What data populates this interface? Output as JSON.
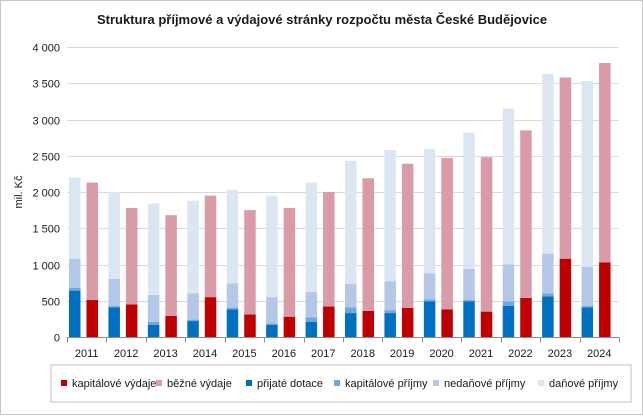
{
  "chart_data": {
    "type": "bar",
    "title": "Struktura  příjmové a výdajové stránky  rozpočtu města České Budějovice",
    "ylabel": "mil. Kč",
    "ylim": [
      0,
      4000
    ],
    "yticks": [
      0,
      500,
      1000,
      1500,
      2000,
      2500,
      3000,
      3500,
      4000
    ],
    "ytick_labels": [
      "0",
      "500",
      "1 000",
      "1 500",
      "2 000",
      "2 500",
      "3 000",
      "3 500",
      "4 000"
    ],
    "grid": true,
    "legend_position": "bottom",
    "categories": [
      "2011",
      "2012",
      "2013",
      "2014",
      "2015",
      "2016",
      "2017",
      "2018",
      "2019",
      "2020",
      "2021",
      "2022",
      "2023",
      "2024"
    ],
    "stacks": [
      {
        "stack": "příjmy",
        "series": [
          {
            "name": "přijaté dotace",
            "color": "#0070c0",
            "values": [
              640,
              410,
              170,
              220,
              380,
              170,
              210,
              330,
              330,
              490,
              490,
              430,
              560,
              410
            ]
          },
          {
            "name": "kapitálové příjmy",
            "color": "#6fa8dc",
            "values": [
              40,
              20,
              40,
              20,
              20,
              20,
              60,
              80,
              40,
              30,
              20,
              60,
              40,
              20
            ]
          },
          {
            "name": "nedaňové příjmy",
            "color": "#b4c7e7",
            "values": [
              400,
              370,
              370,
              360,
              340,
              360,
              350,
              320,
              400,
              360,
              430,
              510,
              550,
              540
            ]
          },
          {
            "name": "daňové příjmy",
            "color": "#dce6f2",
            "values": [
              1120,
              1200,
              1260,
              1280,
              1290,
              1400,
              1510,
              1700,
              1810,
              1710,
              1880,
              2150,
              2480,
              2560
            ]
          }
        ]
      },
      {
        "stack": "výdaje",
        "series": [
          {
            "name": "kapitálové výdaje",
            "color": "#c00000",
            "values": [
              510,
              450,
              290,
              550,
              310,
              280,
              420,
              360,
              400,
              380,
              350,
              540,
              1080,
              1030
            ]
          },
          {
            "name": "běžné výdaje",
            "color": "#d99ba8",
            "values": [
              1620,
              1330,
              1390,
              1400,
              1440,
              1500,
              1580,
              1830,
              1990,
              2090,
              2130,
              2310,
              2500,
              2750
            ]
          }
        ]
      }
    ],
    "legend": [
      {
        "label": "kapitálové výdaje",
        "color": "#c00000"
      },
      {
        "label": "běžné výdaje",
        "color": "#d99ba8"
      },
      {
        "label": "přijaté dotace",
        "color": "#0070c0"
      },
      {
        "label": "kapitálové příjmy",
        "color": "#6fa8dc"
      },
      {
        "label": "nedaňové příjmy",
        "color": "#b4c7e7"
      },
      {
        "label": "daňové příjmy",
        "color": "#dce6f2"
      }
    ]
  }
}
